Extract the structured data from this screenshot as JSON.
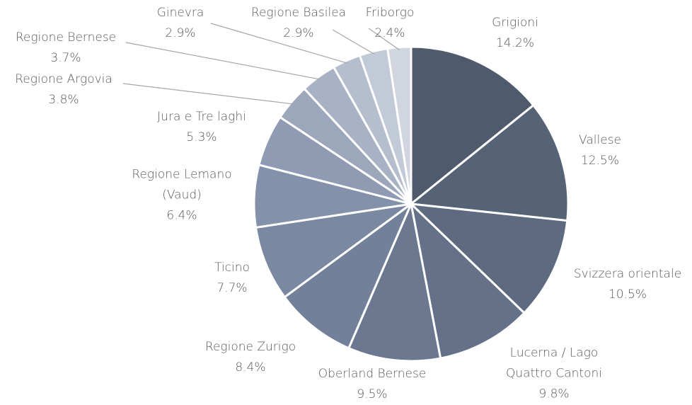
{
  "chart_data": {
    "type": "pie",
    "categories": [
      "Grigioni",
      "Vallese",
      "Svizzera orientale",
      "Lucerna / Lago Quattro Cantoni",
      "Oberland Bernese",
      "Regione Zurigo",
      "Ticino",
      "Regione Lemano (Vaud)",
      "Jura e Tre laghi",
      "Regione Argovia",
      "Regione Bernese",
      "Ginevra",
      "Regione Basilea",
      "Friborgo"
    ],
    "values": [
      14.2,
      12.5,
      10.5,
      9.8,
      9.5,
      8.4,
      7.7,
      6.4,
      5.3,
      3.8,
      3.7,
      2.9,
      2.9,
      2.4
    ],
    "value_labels": [
      "14.2%",
      "12.5%",
      "10.5%",
      "9.8%",
      "9.5%",
      "8.4%",
      "7.7%",
      "6.4%",
      "5.3%",
      "3.8%",
      "3.7%",
      "2.9%",
      "2.9%",
      "2.4%"
    ],
    "colors": [
      "#4f5a6c",
      "#566276",
      "#5e6a7f",
      "#647188",
      "#6b7890",
      "#728099",
      "#7a88a1",
      "#8491aa",
      "#8f9bb2",
      "#9ca7bc",
      "#a9b2c5",
      "#b6bece",
      "#c3cad7",
      "#d0d5df"
    ]
  }
}
